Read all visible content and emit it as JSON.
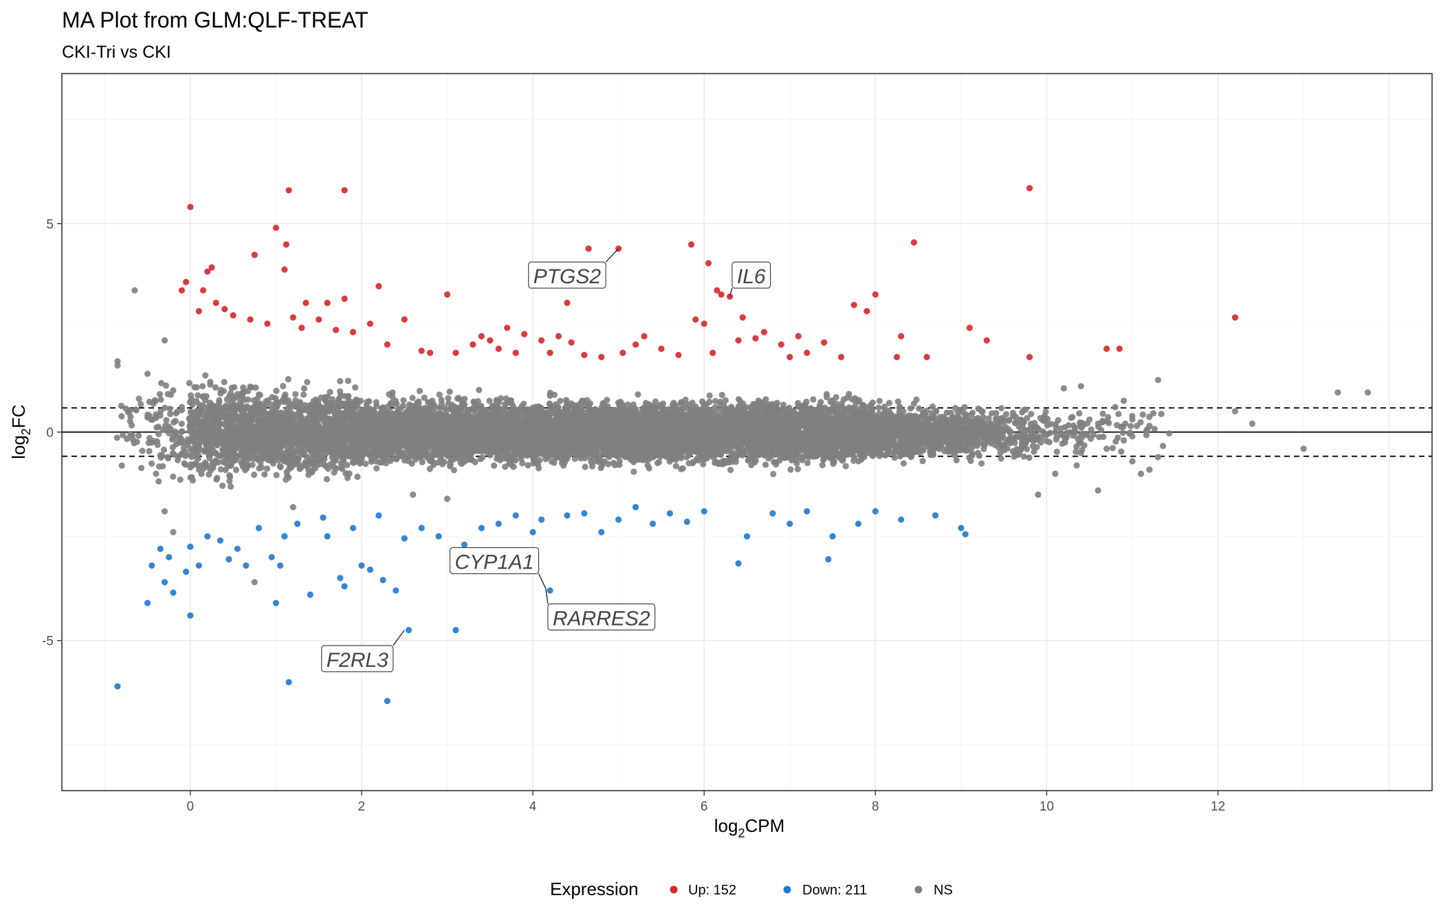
{
  "chart_data": {
    "type": "scatter",
    "title": "MA Plot from GLM:QLF-TREAT",
    "subtitle": "CKI-Tri vs CKI",
    "xlabel": {
      "main": "log",
      "sub": "2",
      "rest": "CPM"
    },
    "ylabel": {
      "main": "log",
      "sub": "2",
      "rest": "FC"
    },
    "xlim": [
      -1.5,
      14.5
    ],
    "ylim": [
      -8.6,
      8.6
    ],
    "x_ticks": [
      0,
      2,
      4,
      6,
      8,
      10,
      12
    ],
    "x_tick_labels": [
      "0",
      "2",
      "4",
      "6",
      "8",
      "10",
      "12"
    ],
    "y_ticks": [
      -5,
      0,
      5
    ],
    "y_tick_labels": [
      "-5",
      "0",
      "5"
    ],
    "grid": true,
    "reference_lines": {
      "solid": 0,
      "dashed": [
        0.58,
        -0.58
      ]
    },
    "legend": {
      "position": "bottom",
      "title": "Expression",
      "entries": [
        {
          "label": "Up: 152",
          "color": "#d62728"
        },
        {
          "label": "Down: 211",
          "color": "#1f78d1"
        },
        {
          "label": "NS",
          "color": "#808080"
        }
      ]
    },
    "colors": {
      "up": "#d62728",
      "down": "#1f78d1",
      "ns": "#808080"
    },
    "series": [
      {
        "name": "Up: 152",
        "points": [
          [
            -0.1,
            3.4
          ],
          [
            -0.05,
            3.6
          ],
          [
            0.0,
            5.4
          ],
          [
            0.1,
            2.9
          ],
          [
            0.15,
            3.4
          ],
          [
            0.2,
            3.85
          ],
          [
            0.25,
            3.95
          ],
          [
            0.3,
            3.1
          ],
          [
            0.4,
            2.95
          ],
          [
            0.5,
            2.8
          ],
          [
            0.7,
            2.7
          ],
          [
            0.75,
            4.25
          ],
          [
            0.9,
            2.6
          ],
          [
            1.0,
            4.9
          ],
          [
            1.1,
            3.9
          ],
          [
            1.12,
            4.5
          ],
          [
            1.15,
            5.8
          ],
          [
            1.2,
            2.75
          ],
          [
            1.3,
            2.5
          ],
          [
            1.35,
            3.1
          ],
          [
            1.5,
            2.7
          ],
          [
            1.6,
            3.1
          ],
          [
            1.7,
            2.45
          ],
          [
            1.8,
            5.8
          ],
          [
            1.8,
            3.2
          ],
          [
            1.9,
            2.4
          ],
          [
            2.1,
            2.6
          ],
          [
            2.2,
            3.5
          ],
          [
            2.3,
            2.1
          ],
          [
            2.5,
            2.7
          ],
          [
            2.7,
            1.95
          ],
          [
            2.8,
            1.9
          ],
          [
            3.0,
            3.3
          ],
          [
            3.1,
            1.9
          ],
          [
            3.3,
            2.1
          ],
          [
            3.4,
            2.3
          ],
          [
            3.5,
            2.2
          ],
          [
            3.6,
            2.0
          ],
          [
            3.7,
            2.5
          ],
          [
            3.8,
            1.9
          ],
          [
            3.9,
            2.35
          ],
          [
            4.1,
            2.2
          ],
          [
            4.2,
            1.9
          ],
          [
            4.3,
            2.3
          ],
          [
            4.4,
            3.1
          ],
          [
            4.45,
            2.15
          ],
          [
            4.6,
            1.85
          ],
          [
            4.65,
            4.4
          ],
          [
            4.8,
            1.8
          ],
          [
            5.0,
            4.4
          ],
          [
            5.05,
            1.9
          ],
          [
            5.2,
            2.1
          ],
          [
            5.3,
            2.3
          ],
          [
            5.5,
            2.0
          ],
          [
            5.7,
            1.85
          ],
          [
            5.85,
            4.5
          ],
          [
            5.9,
            2.7
          ],
          [
            6.0,
            2.6
          ],
          [
            6.05,
            4.05
          ],
          [
            6.1,
            1.9
          ],
          [
            6.15,
            3.4
          ],
          [
            6.2,
            3.3
          ],
          [
            6.3,
            3.25
          ],
          [
            6.4,
            2.2
          ],
          [
            6.45,
            2.75
          ],
          [
            6.6,
            2.25
          ],
          [
            6.7,
            2.4
          ],
          [
            6.9,
            2.1
          ],
          [
            7.0,
            1.8
          ],
          [
            7.1,
            2.3
          ],
          [
            7.2,
            1.9
          ],
          [
            7.4,
            2.15
          ],
          [
            7.6,
            1.8
          ],
          [
            7.75,
            3.05
          ],
          [
            7.9,
            2.9
          ],
          [
            8.0,
            3.3
          ],
          [
            8.25,
            1.8
          ],
          [
            8.3,
            2.3
          ],
          [
            8.45,
            4.55
          ],
          [
            8.6,
            1.8
          ],
          [
            9.1,
            2.5
          ],
          [
            9.3,
            2.2
          ],
          [
            9.8,
            1.8
          ],
          [
            9.8,
            5.85
          ],
          [
            10.7,
            2.0
          ],
          [
            10.85,
            2.0
          ],
          [
            12.2,
            2.75
          ]
        ]
      },
      {
        "name": "Down: 211",
        "points": [
          [
            -0.85,
            -6.1
          ],
          [
            -0.5,
            -4.1
          ],
          [
            -0.45,
            -3.2
          ],
          [
            -0.35,
            -2.8
          ],
          [
            -0.3,
            -3.6
          ],
          [
            -0.25,
            -3.0
          ],
          [
            -0.2,
            -3.85
          ],
          [
            -0.05,
            -3.35
          ],
          [
            0.0,
            -4.4
          ],
          [
            0.0,
            -2.75
          ],
          [
            0.1,
            -3.2
          ],
          [
            0.2,
            -2.5
          ],
          [
            0.35,
            -2.6
          ],
          [
            0.45,
            -3.05
          ],
          [
            0.55,
            -2.8
          ],
          [
            0.65,
            -3.2
          ],
          [
            0.8,
            -2.3
          ],
          [
            0.95,
            -3.0
          ],
          [
            1.0,
            -4.1
          ],
          [
            1.05,
            -3.2
          ],
          [
            1.1,
            -2.5
          ],
          [
            1.15,
            -6.0
          ],
          [
            1.25,
            -2.2
          ],
          [
            1.4,
            -3.9
          ],
          [
            1.55,
            -2.05
          ],
          [
            1.6,
            -2.5
          ],
          [
            1.75,
            -3.5
          ],
          [
            1.8,
            -3.7
          ],
          [
            1.9,
            -2.3
          ],
          [
            2.0,
            -3.2
          ],
          [
            2.1,
            -3.3
          ],
          [
            2.2,
            -2.0
          ],
          [
            2.25,
            -3.55
          ],
          [
            2.3,
            -6.45
          ],
          [
            2.4,
            -3.8
          ],
          [
            2.5,
            -2.55
          ],
          [
            2.55,
            -4.75
          ],
          [
            2.7,
            -2.3
          ],
          [
            2.9,
            -2.5
          ],
          [
            3.1,
            -4.75
          ],
          [
            3.2,
            -2.7
          ],
          [
            3.4,
            -2.3
          ],
          [
            3.6,
            -2.2
          ],
          [
            3.8,
            -2.0
          ],
          [
            4.0,
            -2.4
          ],
          [
            4.1,
            -2.1
          ],
          [
            4.2,
            -3.8
          ],
          [
            4.4,
            -2.0
          ],
          [
            4.6,
            -1.95
          ],
          [
            4.8,
            -2.4
          ],
          [
            5.0,
            -2.1
          ],
          [
            5.2,
            -1.8
          ],
          [
            5.4,
            -2.2
          ],
          [
            5.6,
            -1.95
          ],
          [
            5.8,
            -2.15
          ],
          [
            6.0,
            -1.9
          ],
          [
            6.4,
            -3.15
          ],
          [
            6.5,
            -2.5
          ],
          [
            6.8,
            -1.95
          ],
          [
            7.0,
            -2.2
          ],
          [
            7.2,
            -1.9
          ],
          [
            7.45,
            -3.05
          ],
          [
            7.5,
            -2.5
          ],
          [
            7.8,
            -2.2
          ],
          [
            8.0,
            -1.9
          ],
          [
            8.3,
            -2.1
          ],
          [
            8.7,
            -2.0
          ],
          [
            9.0,
            -2.3
          ],
          [
            9.05,
            -2.45
          ]
        ]
      }
    ],
    "ns_density": [
      {
        "x": [
          -0.9,
          -0.5
        ],
        "n": 22
      },
      {
        "x": [
          -0.5,
          0.0
        ],
        "n": 90
      },
      {
        "x": [
          0.0,
          0.5
        ],
        "n": 380
      },
      {
        "x": [
          0.5,
          1.0
        ],
        "n": 420
      },
      {
        "x": [
          1.0,
          1.5
        ],
        "n": 470
      },
      {
        "x": [
          1.5,
          2.0
        ],
        "n": 500
      },
      {
        "x": [
          2.0,
          2.5
        ],
        "n": 540
      },
      {
        "x": [
          2.5,
          3.0
        ],
        "n": 570
      },
      {
        "x": [
          3.0,
          3.5
        ],
        "n": 600
      },
      {
        "x": [
          3.5,
          4.0
        ],
        "n": 620
      },
      {
        "x": [
          4.0,
          4.5
        ],
        "n": 620
      },
      {
        "x": [
          4.5,
          5.0
        ],
        "n": 620
      },
      {
        "x": [
          5.0,
          5.5
        ],
        "n": 620
      },
      {
        "x": [
          5.5,
          6.0
        ],
        "n": 610
      },
      {
        "x": [
          6.0,
          6.5
        ],
        "n": 600
      },
      {
        "x": [
          6.5,
          7.0
        ],
        "n": 570
      },
      {
        "x": [
          7.0,
          7.5
        ],
        "n": 520
      },
      {
        "x": [
          7.5,
          8.0
        ],
        "n": 460
      },
      {
        "x": [
          8.0,
          8.5
        ],
        "n": 380
      },
      {
        "x": [
          8.5,
          9.0
        ],
        "n": 290
      },
      {
        "x": [
          9.0,
          9.5
        ],
        "n": 190
      },
      {
        "x": [
          9.5,
          10.0
        ],
        "n": 110
      },
      {
        "x": [
          10.0,
          10.5
        ],
        "n": 55
      },
      {
        "x": [
          10.5,
          11.0
        ],
        "n": 28
      },
      {
        "x": [
          11.0,
          11.5
        ],
        "n": 12
      }
    ],
    "ns_outliers": [
      [
        -0.85,
        1.6
      ],
      [
        -0.85,
        1.7
      ],
      [
        -0.65,
        3.4
      ],
      [
        -0.6,
        0.8
      ],
      [
        -0.5,
        0.35
      ],
      [
        -0.45,
        -0.25
      ],
      [
        -0.35,
        -0.55
      ],
      [
        -0.3,
        2.2
      ],
      [
        -0.25,
        0.05
      ],
      [
        -0.7,
        -0.05
      ],
      [
        -0.5,
        1.4
      ],
      [
        -0.4,
        -1.0
      ],
      [
        -0.2,
        1.0
      ],
      [
        -0.1,
        0.6
      ],
      [
        -0.2,
        -2.4
      ],
      [
        -0.3,
        -1.9
      ],
      [
        10.2,
        1.05
      ],
      [
        10.4,
        -0.5
      ],
      [
        10.5,
        0.3
      ],
      [
        10.6,
        0.2
      ],
      [
        10.7,
        -0.4
      ],
      [
        10.8,
        0.6
      ],
      [
        10.9,
        -0.2
      ],
      [
        11.0,
        0.3
      ],
      [
        11.0,
        -0.7
      ],
      [
        11.1,
        -1.0
      ],
      [
        11.2,
        -0.9
      ],
      [
        11.3,
        1.25
      ],
      [
        11.3,
        -0.6
      ],
      [
        11.2,
        0.15
      ],
      [
        10.6,
        -1.4
      ],
      [
        10.4,
        1.1
      ],
      [
        11.0,
        -0.1
      ],
      [
        12.2,
        0.5
      ],
      [
        12.4,
        0.2
      ],
      [
        13.0,
        -0.4
      ],
      [
        13.4,
        0.95
      ],
      [
        13.75,
        0.95
      ],
      [
        10.35,
        -0.8
      ],
      [
        10.9,
        0.75
      ],
      [
        0.75,
        -3.6
      ],
      [
        1.2,
        -1.8
      ],
      [
        2.6,
        -1.5
      ],
      [
        3.0,
        -1.6
      ],
      [
        9.9,
        -1.5
      ],
      [
        10.1,
        -1.0
      ]
    ],
    "annotations": [
      {
        "gene": "PTGS2",
        "point": [
          5.0,
          4.4
        ],
        "label_pos": [
          4.4,
          3.75
        ]
      },
      {
        "gene": "IL6",
        "point": [
          6.3,
          3.25
        ],
        "label_pos": [
          6.55,
          3.75
        ]
      },
      {
        "gene": "CYP1A1",
        "point": [
          4.15,
          -3.75
        ],
        "label_pos": [
          3.55,
          -3.1
        ]
      },
      {
        "gene": "RARRES2",
        "point": [
          4.15,
          -3.75
        ],
        "label_pos": [
          4.8,
          -4.45
        ]
      },
      {
        "gene": "F2RL3",
        "point": [
          2.5,
          -4.75
        ],
        "label_pos": [
          1.95,
          -5.45
        ]
      }
    ]
  }
}
